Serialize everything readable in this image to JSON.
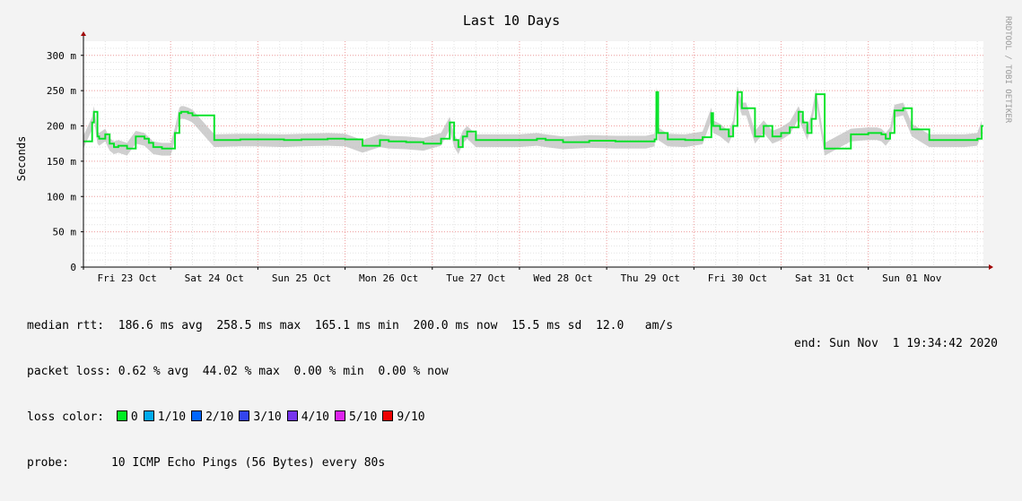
{
  "chart_data": {
    "type": "line",
    "title": "Last 10 Days",
    "ylabel": "Seconds",
    "ylim": [
      0,
      0.32
    ],
    "y_ticks": [
      {
        "value": 0,
        "label": "0"
      },
      {
        "value": 0.05,
        "label": "50 m"
      },
      {
        "value": 0.1,
        "label": "100 m"
      },
      {
        "value": 0.15,
        "label": "150 m"
      },
      {
        "value": 0.2,
        "label": "200 m"
      },
      {
        "value": 0.25,
        "label": "250 m"
      },
      {
        "value": 0.3,
        "label": "300 m"
      }
    ],
    "x_range_days": [
      22.5,
      32.82
    ],
    "x_day_labels": [
      {
        "day": 23,
        "label": "Fri 23 Oct"
      },
      {
        "day": 24,
        "label": "Sat 24 Oct"
      },
      {
        "day": 25,
        "label": "Sun 25 Oct"
      },
      {
        "day": 26,
        "label": "Mon 26 Oct"
      },
      {
        "day": 27,
        "label": "Tue 27 Oct"
      },
      {
        "day": 28,
        "label": "Wed 28 Oct"
      },
      {
        "day": 29,
        "label": "Thu 29 Oct"
      },
      {
        "day": 30,
        "label": "Fri 30 Oct"
      },
      {
        "day": 31,
        "label": "Sat 31 Oct"
      },
      {
        "day": 32,
        "label": "Sun 01 Nov"
      }
    ],
    "grid": true,
    "series": [
      {
        "name": "median rtt",
        "color": "#00ee22",
        "x": [
          22.5,
          22.6,
          22.62,
          22.66,
          22.68,
          22.75,
          22.8,
          22.85,
          22.9,
          23.0,
          23.1,
          23.2,
          23.25,
          23.3,
          23.4,
          23.5,
          23.55,
          23.6,
          23.62,
          23.65,
          23.7,
          23.75,
          24.0,
          24.3,
          24.5,
          24.8,
          25.0,
          25.3,
          25.5,
          25.7,
          25.9,
          26.0,
          26.2,
          26.4,
          26.6,
          26.7,
          26.75,
          26.8,
          26.85,
          26.9,
          27.0,
          27.5,
          27.7,
          27.8,
          28.0,
          28.3,
          28.6,
          28.95,
          29.05,
          29.07,
          29.09,
          29.2,
          29.4,
          29.6,
          29.7,
          29.72,
          29.8,
          29.9,
          29.95,
          30.0,
          30.05,
          30.1,
          30.2,
          30.3,
          30.4,
          30.5,
          30.6,
          30.7,
          30.75,
          30.8,
          30.85,
          30.9,
          31.0,
          31.3,
          31.5,
          31.6,
          31.65,
          31.7,
          31.75,
          31.8,
          31.9,
          32.0,
          32.2,
          32.4,
          32.6,
          32.75,
          32.8
        ],
        "y": [
          0.178,
          0.205,
          0.22,
          0.185,
          0.182,
          0.188,
          0.175,
          0.17,
          0.172,
          0.168,
          0.185,
          0.182,
          0.176,
          0.17,
          0.168,
          0.168,
          0.19,
          0.218,
          0.22,
          0.22,
          0.218,
          0.215,
          0.18,
          0.181,
          0.181,
          0.18,
          0.181,
          0.182,
          0.181,
          0.172,
          0.18,
          0.178,
          0.177,
          0.175,
          0.182,
          0.205,
          0.18,
          0.17,
          0.185,
          0.192,
          0.18,
          0.18,
          0.182,
          0.18,
          0.177,
          0.179,
          0.178,
          0.178,
          0.181,
          0.248,
          0.19,
          0.181,
          0.18,
          0.184,
          0.218,
          0.2,
          0.195,
          0.185,
          0.2,
          0.248,
          0.225,
          0.225,
          0.185,
          0.2,
          0.185,
          0.19,
          0.198,
          0.22,
          0.205,
          0.19,
          0.21,
          0.245,
          0.168,
          0.188,
          0.19,
          0.19,
          0.188,
          0.182,
          0.19,
          0.222,
          0.225,
          0.195,
          0.18,
          0.18,
          0.18,
          0.182,
          0.2
        ]
      }
    ]
  },
  "stats": {
    "median_rtt": {
      "label": "median rtt:",
      "avg": "186.6 ms avg",
      "max": "258.5 ms max",
      "min": "165.1 ms min",
      "now": "200.0 ms now",
      "sd": "15.5 ms sd",
      "am": "12.0",
      "am_unit": "am/s"
    },
    "packet_loss": {
      "label": "packet loss:",
      "avg": "0.62 % avg",
      "max": "44.02 % max",
      "min": "0.00 % min",
      "now": "0.00 % now"
    },
    "loss_color": {
      "label": "loss color:",
      "items": [
        {
          "label": "0",
          "color": "#00ee22"
        },
        {
          "label": "1/10",
          "color": "#00aaee"
        },
        {
          "label": "2/10",
          "color": "#0066ff"
        },
        {
          "label": "3/10",
          "color": "#3344ee"
        },
        {
          "label": "4/10",
          "color": "#7733ee"
        },
        {
          "label": "5/10",
          "color": "#dd22ee"
        },
        {
          "label": "9/10",
          "color": "#ee0000"
        }
      ]
    },
    "probe": {
      "label": "probe:",
      "text": "10 ICMP Echo Pings (56 Bytes) every 80s"
    },
    "end": "end: Sun Nov  1 19:34:42 2020"
  },
  "watermark": "RRDTOOL / TOBI OETIKER"
}
